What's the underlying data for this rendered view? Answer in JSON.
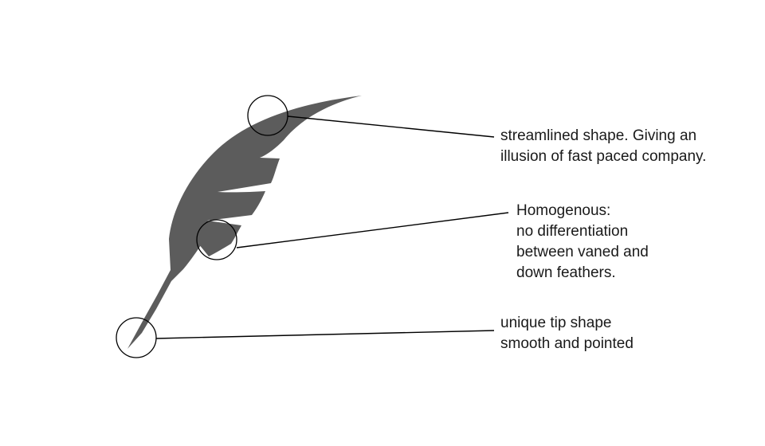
{
  "diagram": {
    "subject": "feather-logo",
    "feather_color": "#5c5c5c",
    "line_color": "#000000",
    "annotations": [
      {
        "target": "feather-top-edge",
        "lines": [
          "streamlined shape. Giving an",
          "illusion of fast paced company."
        ]
      },
      {
        "target": "feather-barbs",
        "lines": [
          "Homogenous:",
          "no differentiation",
          "between vaned and",
          "down feathers."
        ]
      },
      {
        "target": "feather-tip",
        "lines": [
          "unique tip shape",
          "smooth and pointed"
        ]
      }
    ]
  }
}
